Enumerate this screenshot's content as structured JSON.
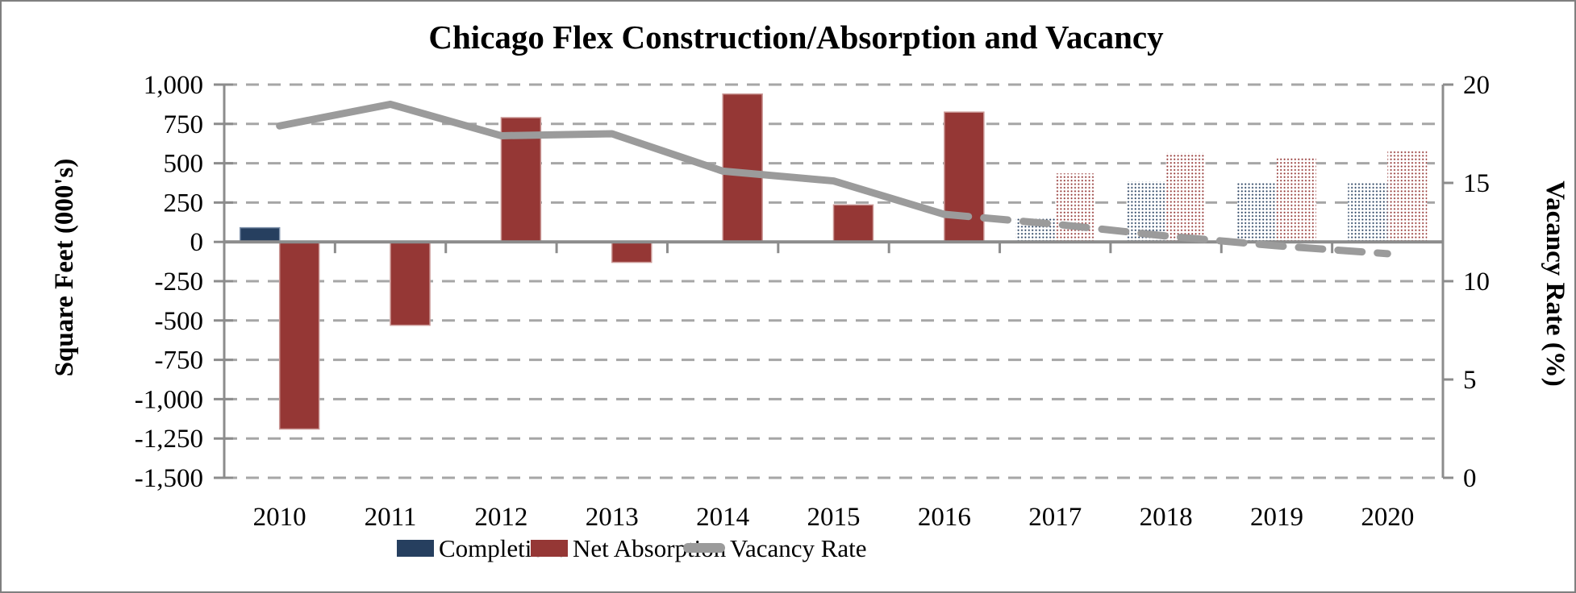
{
  "window": {
    "background": "#FFFFFF",
    "border_color": "#7F7F7F"
  },
  "chart_data": {
    "type": "combo-bar-line",
    "title": "Chicago Flex Construction/Absorption and Vacancy",
    "ylabel_left": "Square Feet (000's)",
    "ylabel_right": "Vacancy Rate (%)",
    "categories": [
      "2010",
      "2011",
      "2012",
      "2013",
      "2014",
      "2015",
      "2016",
      "2017",
      "2018",
      "2019",
      "2020"
    ],
    "series": [
      {
        "name": "Completions",
        "type": "bar",
        "axis": "left",
        "color": "#263F5F",
        "values": [
          90,
          0,
          0,
          0,
          0,
          0,
          0,
          155,
          385,
          375,
          380
        ]
      },
      {
        "name": "Net Absorption",
        "type": "bar",
        "axis": "left",
        "color": "#953735",
        "values": [
          -1190,
          -530,
          790,
          -130,
          940,
          235,
          825,
          435,
          565,
          535,
          580
        ]
      },
      {
        "name": "Vacancy Rate",
        "type": "line",
        "axis": "right",
        "color": "#9B9B9B",
        "values": [
          17.9,
          19.0,
          17.4,
          17.5,
          15.6,
          15.1,
          13.4,
          12.9,
          12.3,
          11.8,
          11.4
        ]
      }
    ],
    "forecast_start_index": 7,
    "forecast_style": "dotted-pattern bars and dashed line for 2017-2020",
    "axis_left": {
      "min": -1500,
      "max": 1000,
      "step": 250,
      "tick_labels": [
        "1,000",
        "750",
        "500",
        "250",
        "0",
        "-250",
        "-500",
        "-750",
        "-1,000",
        "-1,250",
        "-1,500"
      ]
    },
    "axis_right": {
      "min": 0,
      "max": 20,
      "step": 5,
      "tick_labels": [
        "20",
        "15",
        "10",
        "5",
        "0"
      ]
    },
    "gridlines": {
      "style": "dashed",
      "color": "#A6A6A6"
    },
    "axis_color": "#8C8C8C",
    "legend": {
      "position": "bottom",
      "items": [
        "Completions",
        "Net Absorption",
        "Vacancy Rate"
      ]
    }
  }
}
